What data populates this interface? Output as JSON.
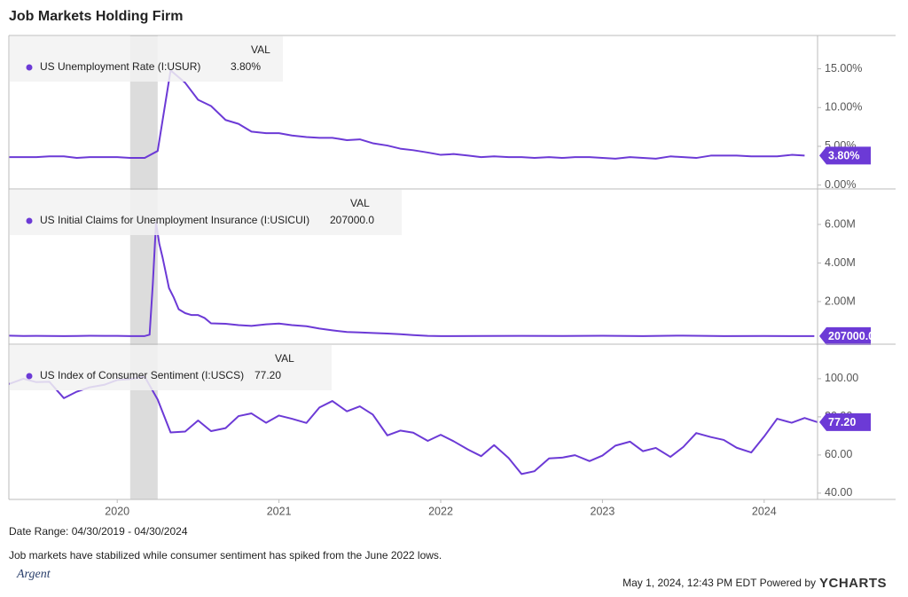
{
  "title": "Job Markets Holding Firm",
  "chart_data": [
    {
      "type": "line",
      "legend_header": "VAL",
      "shaded_x": [
        2020.08,
        2020.25
      ],
      "xlim": [
        2019.33,
        2024.33
      ],
      "ylim": [
        -0.5,
        19.3
      ],
      "yticks": [
        {
          "value": 0,
          "label": "0.00%"
        },
        {
          "value": 5,
          "label": "5.00%"
        },
        {
          "value": 10,
          "label": "10.00%"
        },
        {
          "value": 15,
          "label": "15.00%"
        }
      ],
      "current": {
        "value": 3.8,
        "label": "3.80%"
      },
      "x": [
        2019.33,
        2019.42,
        2019.5,
        2019.58,
        2019.67,
        2019.75,
        2019.83,
        2019.92,
        2020,
        2020.08,
        2020.17,
        2020.25,
        2020.33,
        2020.42,
        2020.5,
        2020.58,
        2020.67,
        2020.75,
        2020.83,
        2020.92,
        2021,
        2021.08,
        2021.17,
        2021.25,
        2021.33,
        2021.42,
        2021.5,
        2021.58,
        2021.67,
        2021.75,
        2021.83,
        2021.92,
        2022,
        2022.08,
        2022.17,
        2022.25,
        2022.33,
        2022.42,
        2022.5,
        2022.58,
        2022.67,
        2022.75,
        2022.83,
        2022.92,
        2023,
        2023.08,
        2023.17,
        2023.25,
        2023.33,
        2023.42,
        2023.5,
        2023.58,
        2023.67,
        2023.75,
        2023.83,
        2023.92,
        2024,
        2024.08,
        2024.17,
        2024.25
      ],
      "series": [
        {
          "name": "US Unemployment Rate (I:USUR)",
          "color": "#6c3ad6",
          "values": [
            3.6,
            3.6,
            3.6,
            3.7,
            3.7,
            3.5,
            3.6,
            3.6,
            3.6,
            3.5,
            3.5,
            4.4,
            14.8,
            13.2,
            11.0,
            10.2,
            8.4,
            7.9,
            6.9,
            6.7,
            6.7,
            6.4,
            6.2,
            6.1,
            6.1,
            5.8,
            5.9,
            5.4,
            5.1,
            4.7,
            4.5,
            4.2,
            3.9,
            4.0,
            3.8,
            3.6,
            3.7,
            3.6,
            3.6,
            3.5,
            3.6,
            3.5,
            3.6,
            3.6,
            3.5,
            3.4,
            3.6,
            3.5,
            3.4,
            3.7,
            3.6,
            3.5,
            3.8,
            3.8,
            3.8,
            3.7,
            3.7,
            3.7,
            3.9,
            3.8
          ]
        }
      ]
    },
    {
      "type": "line",
      "legend_header": "VAL",
      "shaded_x": [
        2020.08,
        2020.25
      ],
      "xlim": [
        2019.33,
        2024.33
      ],
      "ylim": [
        -210000,
        7840000
      ],
      "yticks": [
        {
          "value": 2000000,
          "label": "2.00M"
        },
        {
          "value": 4000000,
          "label": "4.00M"
        },
        {
          "value": 6000000,
          "label": "6.00M"
        }
      ],
      "current": {
        "value": 207000,
        "label": "207000.0"
      },
      "x": [
        2019.33,
        2019.42,
        2019.5,
        2019.58,
        2019.67,
        2019.75,
        2019.83,
        2019.92,
        2020,
        2020.08,
        2020.17,
        2020.2,
        2020.22,
        2020.24,
        2020.26,
        2020.28,
        2020.3,
        2020.32,
        2020.35,
        2020.38,
        2020.42,
        2020.46,
        2020.5,
        2020.54,
        2020.58,
        2020.67,
        2020.75,
        2020.83,
        2020.92,
        2021,
        2021.08,
        2021.17,
        2021.25,
        2021.33,
        2021.42,
        2021.5,
        2021.58,
        2021.67,
        2021.75,
        2021.83,
        2021.92,
        2022,
        2022.25,
        2022.5,
        2022.75,
        2023,
        2023.25,
        2023.5,
        2023.75,
        2024,
        2024.17,
        2024.31
      ],
      "series": [
        {
          "name": "US Initial Claims for Unemployment Insurance (I:USICUI)",
          "color": "#6c3ad6",
          "values": [
            230000,
            218000,
            222000,
            215000,
            212000,
            218000,
            225000,
            222000,
            220000,
            212000,
            211000,
            282000,
            2920000,
            6100000,
            5000000,
            4300000,
            3500000,
            2700000,
            2200000,
            1600000,
            1400000,
            1300000,
            1300000,
            1150000,
            870000,
            850000,
            780000,
            740000,
            820000,
            860000,
            780000,
            720000,
            600000,
            510000,
            420000,
            400000,
            370000,
            340000,
            310000,
            260000,
            220000,
            210000,
            215000,
            220000,
            215000,
            225000,
            210000,
            235000,
            210000,
            215000,
            210000,
            207000
          ]
        }
      ]
    },
    {
      "type": "line",
      "legend_header": "VAL",
      "shaded_x": [
        2020.08,
        2020.25
      ],
      "xlim": [
        2019.33,
        2024.33
      ],
      "ylim": [
        36.7,
        118.1
      ],
      "yticks": [
        {
          "value": 40,
          "label": "40.00"
        },
        {
          "value": 60,
          "label": "60.00"
        },
        {
          "value": 80,
          "label": "80.00"
        },
        {
          "value": 100,
          "label": "100.00"
        }
      ],
      "xticks": [
        2020,
        2021,
        2022,
        2023,
        2024
      ],
      "current": {
        "value": 77.2,
        "label": "77.20"
      },
      "x": [
        2019.33,
        2019.42,
        2019.5,
        2019.58,
        2019.67,
        2019.75,
        2019.83,
        2019.92,
        2020,
        2020.08,
        2020.17,
        2020.25,
        2020.33,
        2020.42,
        2020.5,
        2020.58,
        2020.67,
        2020.75,
        2020.83,
        2020.92,
        2021,
        2021.08,
        2021.17,
        2021.25,
        2021.33,
        2021.42,
        2021.5,
        2021.58,
        2021.67,
        2021.75,
        2021.83,
        2021.92,
        2022,
        2022.08,
        2022.17,
        2022.25,
        2022.33,
        2022.42,
        2022.5,
        2022.58,
        2022.67,
        2022.75,
        2022.83,
        2022.92,
        2023,
        2023.08,
        2023.17,
        2023.25,
        2023.33,
        2023.42,
        2023.5,
        2023.58,
        2023.67,
        2023.75,
        2023.83,
        2023.92,
        2024,
        2024.08,
        2024.17,
        2024.25,
        2024.33
      ],
      "series": [
        {
          "name": "US Index of Consumer Sentiment (I:USCS)",
          "color": "#6c3ad6",
          "values": [
            97.2,
            100.0,
            98.2,
            98.4,
            89.8,
            93.2,
            95.5,
            96.8,
            99.3,
            99.8,
            101.0,
            89.1,
            71.8,
            72.3,
            78.1,
            72.5,
            74.1,
            80.4,
            81.8,
            76.9,
            80.7,
            79.0,
            76.8,
            84.9,
            88.3,
            82.9,
            85.5,
            81.2,
            70.3,
            72.8,
            71.7,
            67.4,
            70.6,
            67.2,
            62.8,
            59.4,
            65.2,
            58.4,
            50.0,
            51.5,
            58.2,
            58.6,
            59.9,
            56.8,
            59.7,
            64.9,
            67.0,
            62.0,
            63.7,
            59.0,
            64.2,
            71.5,
            69.4,
            67.9,
            63.8,
            61.3,
            69.7,
            79.0,
            76.9,
            79.4,
            77.2
          ]
        }
      ]
    }
  ],
  "footer": {
    "date_range": "Date Range: 04/30/2019 - 04/30/2024",
    "note": "Job markets have stabilized while consumer sentiment has spiked from the June 2022 lows.",
    "timestamp": "May 1, 2024, 12:43 PM EDT Powered by",
    "brand": "YCHARTS",
    "logo": "Argent"
  }
}
